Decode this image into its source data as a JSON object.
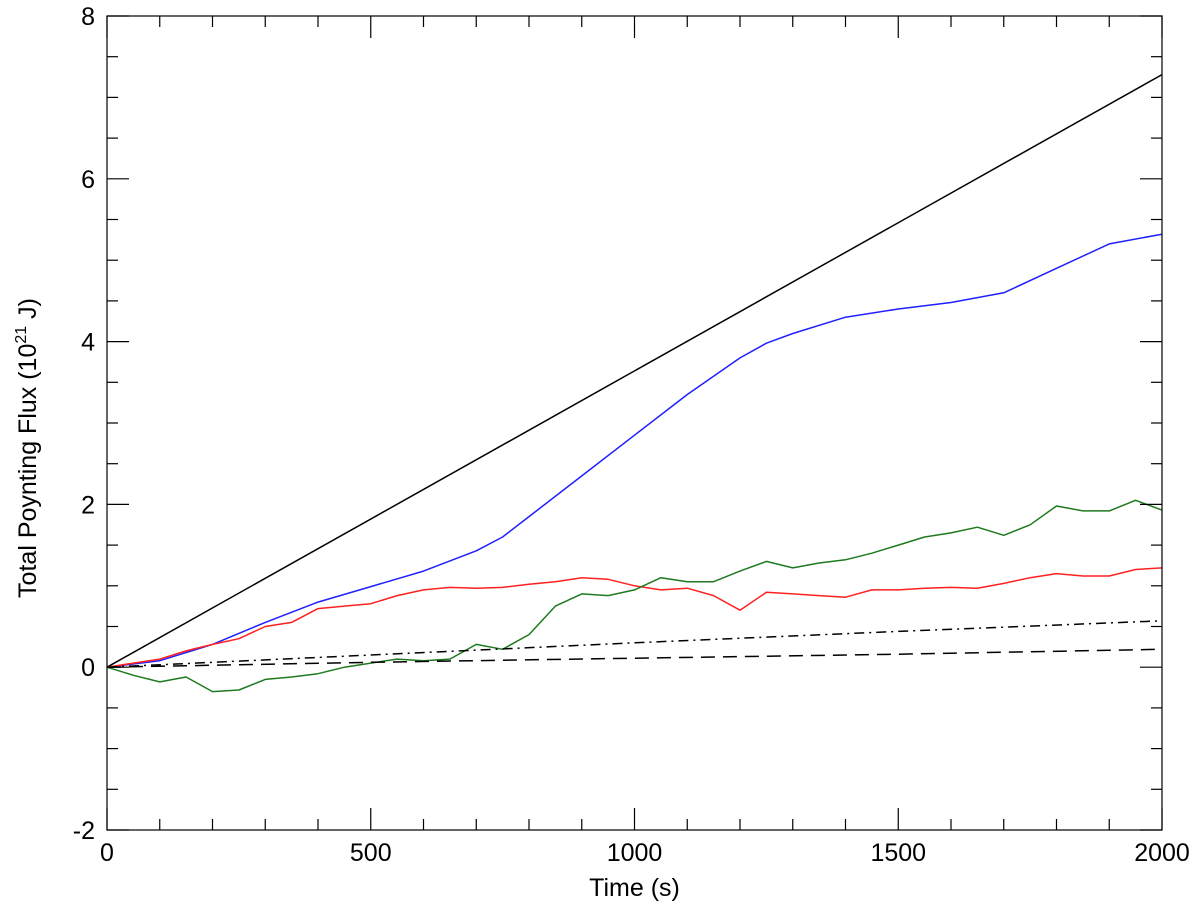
{
  "chart_data": {
    "type": "line",
    "title": "",
    "xlabel": "Time (s)",
    "ylabel": {
      "prefix": "Total Poynting Flux (10",
      "superscript": "21",
      "suffix": " J)"
    },
    "xlim": [
      0,
      2000
    ],
    "ylim": [
      -2,
      8
    ],
    "x_ticks": [
      0,
      500,
      1000,
      1500,
      2000
    ],
    "x_tick_labels": [
      "0",
      "500",
      "1000",
      "1500",
      "2000"
    ],
    "x_minor_step": 100,
    "y_ticks": [
      -2,
      0,
      2,
      4,
      6,
      8
    ],
    "y_tick_labels": [
      "-2",
      "0",
      "2",
      "4",
      "6",
      "8"
    ],
    "y_minor_step": 0.5,
    "grid": false,
    "legend": "none",
    "series": [
      {
        "color": "#000000",
        "dash": "solid",
        "x": [
          0,
          2000
        ],
        "y": [
          0,
          7.28
        ]
      },
      {
        "color": "#2020ff",
        "dash": "solid",
        "x": [
          0,
          100,
          200,
          300,
          400,
          500,
          600,
          700,
          750,
          800,
          900,
          1000,
          1100,
          1200,
          1250,
          1300,
          1400,
          1500,
          1600,
          1700,
          1800,
          1900,
          2000
        ],
        "y": [
          0,
          0.08,
          0.28,
          0.55,
          0.8,
          0.99,
          1.18,
          1.43,
          1.6,
          1.85,
          2.35,
          2.85,
          3.35,
          3.8,
          3.98,
          4.1,
          4.3,
          4.4,
          4.48,
          4.6,
          4.9,
          5.2,
          5.32
        ]
      },
      {
        "color": "#ff2020",
        "dash": "solid",
        "x": [
          0,
          50,
          100,
          150,
          200,
          250,
          300,
          350,
          400,
          450,
          500,
          550,
          600,
          650,
          700,
          750,
          800,
          850,
          900,
          950,
          1000,
          1050,
          1100,
          1150,
          1200,
          1250,
          1300,
          1350,
          1400,
          1450,
          1500,
          1550,
          1600,
          1650,
          1700,
          1750,
          1800,
          1850,
          1900,
          1950,
          2000
        ],
        "y": [
          0,
          0.05,
          0.1,
          0.2,
          0.28,
          0.35,
          0.5,
          0.55,
          0.72,
          0.75,
          0.78,
          0.88,
          0.95,
          0.98,
          0.97,
          0.98,
          1.02,
          1.05,
          1.1,
          1.08,
          1.0,
          0.95,
          0.97,
          0.88,
          0.7,
          0.92,
          0.9,
          0.88,
          0.86,
          0.95,
          0.95,
          0.97,
          0.98,
          0.97,
          1.03,
          1.1,
          1.15,
          1.12,
          1.12,
          1.2,
          1.22
        ]
      },
      {
        "color": "#1e7a1e",
        "dash": "solid",
        "x": [
          0,
          50,
          100,
          150,
          200,
          250,
          300,
          350,
          400,
          450,
          500,
          550,
          600,
          650,
          700,
          750,
          800,
          850,
          900,
          950,
          1000,
          1050,
          1100,
          1150,
          1200,
          1250,
          1300,
          1350,
          1400,
          1450,
          1500,
          1550,
          1600,
          1650,
          1700,
          1750,
          1800,
          1850,
          1900,
          1950,
          2000
        ],
        "y": [
          0,
          -0.1,
          -0.18,
          -0.12,
          -0.3,
          -0.28,
          -0.15,
          -0.12,
          -0.08,
          0.0,
          0.05,
          0.1,
          0.08,
          0.1,
          0.28,
          0.22,
          0.4,
          0.75,
          0.9,
          0.88,
          0.95,
          1.1,
          1.05,
          1.05,
          1.18,
          1.3,
          1.22,
          1.28,
          1.32,
          1.4,
          1.5,
          1.6,
          1.65,
          1.72,
          1.62,
          1.75,
          1.98,
          1.92,
          1.92,
          2.05,
          1.93
        ]
      },
      {
        "color": "#000000",
        "dash": "dashdot",
        "x": [
          0,
          500,
          1000,
          1500,
          2000
        ],
        "y": [
          0,
          0.15,
          0.3,
          0.44,
          0.57
        ]
      },
      {
        "color": "#000000",
        "dash": "dashed",
        "x": [
          0,
          500,
          1000,
          1500,
          2000
        ],
        "y": [
          0,
          0.06,
          0.11,
          0.16,
          0.22
        ]
      }
    ]
  }
}
